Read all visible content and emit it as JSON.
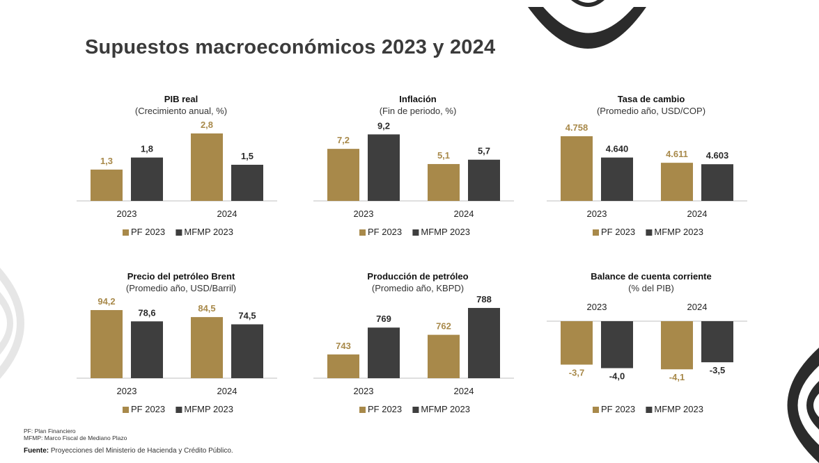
{
  "page": {
    "title": "Supuestos macroeconómicos 2023 y 2024",
    "notes": [
      "PF: Plan Financiero",
      "MFMP: Marco Fiscal de Mediano Plazo"
    ],
    "source_label": "Fuente:",
    "source_text": "Proyecciones del Ministerio de Hacienda y Crédito Público."
  },
  "colors": {
    "pf": "#A8894A",
    "mfmp": "#3E3E3E",
    "axis": "#BFBFBF",
    "deco_dark": "#2B2B2B",
    "deco_light": "#E6E6E6"
  },
  "chart_data": [
    {
      "type": "bar",
      "title": "PIB real",
      "subtitle": "(Crecimiento anual, %)",
      "categories": [
        "2023",
        "2024"
      ],
      "series": [
        {
          "name": "PF 2023",
          "values": [
            1.3,
            2.8
          ],
          "labels": [
            "1,3",
            "2,8"
          ]
        },
        {
          "name": "MFMP 2023",
          "values": [
            1.8,
            1.5
          ],
          "labels": [
            "1,8",
            "1,5"
          ]
        }
      ],
      "ylim": [
        0,
        3.0
      ],
      "legend": "bottom",
      "axis_labels_position": "bottom"
    },
    {
      "type": "bar",
      "title": "Inflación",
      "subtitle": "(Fin de periodo, %)",
      "categories": [
        "2023",
        "2024"
      ],
      "series": [
        {
          "name": "PF 2023",
          "values": [
            7.2,
            5.1
          ],
          "labels": [
            "7,2",
            "5,1"
          ]
        },
        {
          "name": "MFMP 2023",
          "values": [
            9.2,
            5.7
          ],
          "labels": [
            "9,2",
            "5,7"
          ]
        }
      ],
      "ylim": [
        0,
        10
      ],
      "legend": "bottom",
      "axis_labels_position": "bottom"
    },
    {
      "type": "bar",
      "title": "Tasa de cambio",
      "subtitle": "(Promedio año, USD/COP)",
      "categories": [
        "2023",
        "2024"
      ],
      "series": [
        {
          "name": "PF 2023",
          "values": [
            4758,
            4611
          ],
          "labels": [
            "4.758",
            "4.611"
          ]
        },
        {
          "name": "MFMP 2023",
          "values": [
            4640,
            4603
          ],
          "labels": [
            "4.640",
            "4.603"
          ]
        }
      ],
      "ylim": [
        4400,
        4800
      ],
      "legend": "bottom",
      "axis_labels_position": "bottom"
    },
    {
      "type": "bar",
      "title": "Precio del petróleo Brent",
      "subtitle": "(Promedio año, USD/Barril)",
      "categories": [
        "2023",
        "2024"
      ],
      "series": [
        {
          "name": "PF 2023",
          "values": [
            94.2,
            84.5
          ],
          "labels": [
            "94,2",
            "84,5"
          ]
        },
        {
          "name": "MFMP 2023",
          "values": [
            78.6,
            74.5
          ],
          "labels": [
            "78,6",
            "74,5"
          ]
        }
      ],
      "ylim": [
        0,
        100
      ],
      "legend": "bottom",
      "axis_labels_position": "bottom"
    },
    {
      "type": "bar",
      "title": "Producción de petróleo",
      "subtitle": "(Promedio año, KBPD)",
      "categories": [
        "2023",
        "2024"
      ],
      "series": [
        {
          "name": "PF 2023",
          "values": [
            743,
            762
          ],
          "labels": [
            "743",
            "762"
          ]
        },
        {
          "name": "MFMP 2023",
          "values": [
            769,
            788
          ],
          "labels": [
            "769",
            "788"
          ]
        }
      ],
      "ylim": [
        720,
        790
      ],
      "legend": "bottom",
      "axis_labels_position": "bottom"
    },
    {
      "type": "bar",
      "title": "Balance de cuenta corriente",
      "subtitle": "(% del PIB)",
      "categories": [
        "2023",
        "2024"
      ],
      "series": [
        {
          "name": "PF 2023",
          "values": [
            -3.7,
            -4.1
          ],
          "labels": [
            "-3,7",
            "-4,1"
          ]
        },
        {
          "name": "MFMP 2023",
          "values": [
            -4.0,
            -3.5
          ],
          "labels": [
            "-4,0",
            "-3,5"
          ]
        }
      ],
      "ylim": [
        -4.5,
        0
      ],
      "legend": "bottom",
      "axis_labels_position": "top"
    }
  ]
}
